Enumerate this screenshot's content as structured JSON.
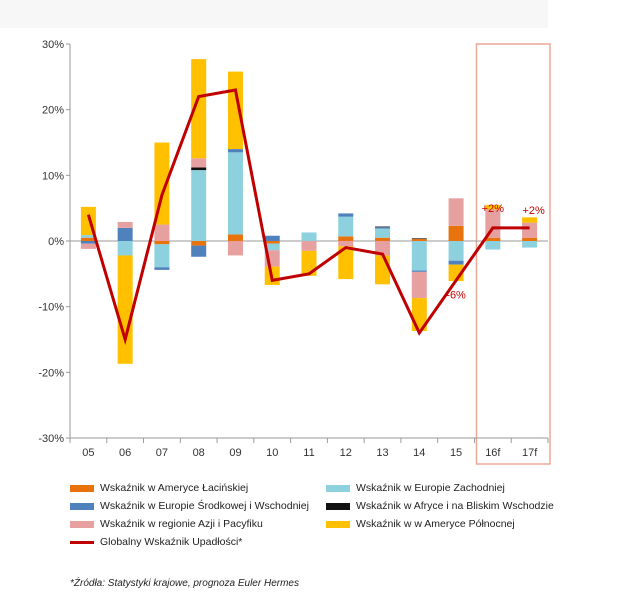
{
  "chart_data": {
    "type": "bar",
    "stacked": true,
    "categories": [
      "05",
      "06",
      "07",
      "08",
      "09",
      "10",
      "11",
      "12",
      "13",
      "14",
      "15",
      "16f",
      "17f"
    ],
    "y_ticks": [
      "30%",
      "20%",
      "10%",
      "0%",
      "-10%",
      "-20%",
      "-30%"
    ],
    "ylim": [
      -30,
      30
    ],
    "forecast_categories": [
      "16f",
      "17f"
    ],
    "series": [
      {
        "name": "Wskaźnik w Ameryce Łacińskiej",
        "color": "#e8730c",
        "values": [
          0.5,
          0,
          -0.5,
          -0.7,
          1.0,
          -0.4,
          0,
          0.7,
          0.5,
          0.3,
          2.3,
          0.5,
          0.5
        ]
      },
      {
        "name": "Wskaźnik w Europie Zachodniej",
        "color": "#8ed1de",
        "values": [
          0.4,
          -2.2,
          -3.5,
          10.8,
          12.5,
          -1.0,
          1.3,
          3.0,
          1.4,
          -4.5,
          -3.0,
          -1.3,
          -1.0
        ]
      },
      {
        "name": "Wskaźnik w Europie Środkowej i Wschodniej",
        "color": "#4f81bd",
        "values": [
          -0.4,
          2.0,
          -0.4,
          -1.7,
          0.5,
          0.8,
          0,
          0.5,
          0.2,
          -0.2,
          -0.6,
          0,
          0
        ]
      },
      {
        "name": "Wskaźnik w Afryce i na Bliskim Wschodzie",
        "color": "#111111",
        "values": [
          0,
          0,
          0,
          0.4,
          0,
          0,
          0,
          0,
          0.1,
          0.1,
          0,
          0,
          0
        ]
      },
      {
        "name": "Wskaźnik  w regionie Azji i Pacyfiku",
        "color": "#e6a0a0",
        "values": [
          -0.8,
          0.9,
          2.5,
          1.4,
          -2.2,
          -2.5,
          -1.5,
          -0.8,
          -2.2,
          -4.0,
          4.2,
          4.3,
          2.3
        ]
      },
      {
        "name": "Wskaźnik  w w Ameryce Północnej",
        "color": "#ffc000",
        "values": [
          4.3,
          -16.5,
          12.5,
          15.1,
          11.8,
          -2.8,
          -3.8,
          -5.0,
          -4.4,
          -5.0,
          -2.5,
          0.7,
          0.8
        ]
      }
    ],
    "line": {
      "name": "Globalny Wskaźnik Upadłości*",
      "color": "#c00000",
      "values": [
        4,
        -15,
        7,
        22,
        23,
        -6,
        -5,
        -1,
        -2,
        -14,
        -6,
        2,
        2
      ]
    },
    "annotations": [
      {
        "category": "15",
        "text": "-6%"
      },
      {
        "category": "16f",
        "text": "+2%"
      },
      {
        "category": "17f",
        "text": "+2%"
      }
    ]
  },
  "legend_items": [
    {
      "label": "Wskaźnik w Ameryce Łacińskiej",
      "color": "#e8730c"
    },
    {
      "label": "Wskaźnik w Europie Zachodniej",
      "color": "#8ed1de"
    },
    {
      "label": "Wskaźnik w Europie Środkowej i Wschodniej",
      "color": "#4f81bd"
    },
    {
      "label": "Wskaźnik w Afryce i na Bliskim Wschodzie",
      "color": "#111111"
    },
    {
      "label": "Wskaźnik  w regionie Azji i Pacyfiku",
      "color": "#e6a0a0"
    },
    {
      "label": "Wskaźnik  w w Ameryce Północnej",
      "color": "#ffc000"
    },
    {
      "label": "Globalny Wskaźnik Upadłości*",
      "color": "#c00000"
    }
  ],
  "source": "*Źródła: Statystyki krajowe, prognoza Euler Hermes",
  "colors": {
    "forecast_box": "#e8a898",
    "axis": "#9a9a9a",
    "annotation": "#c00000"
  }
}
